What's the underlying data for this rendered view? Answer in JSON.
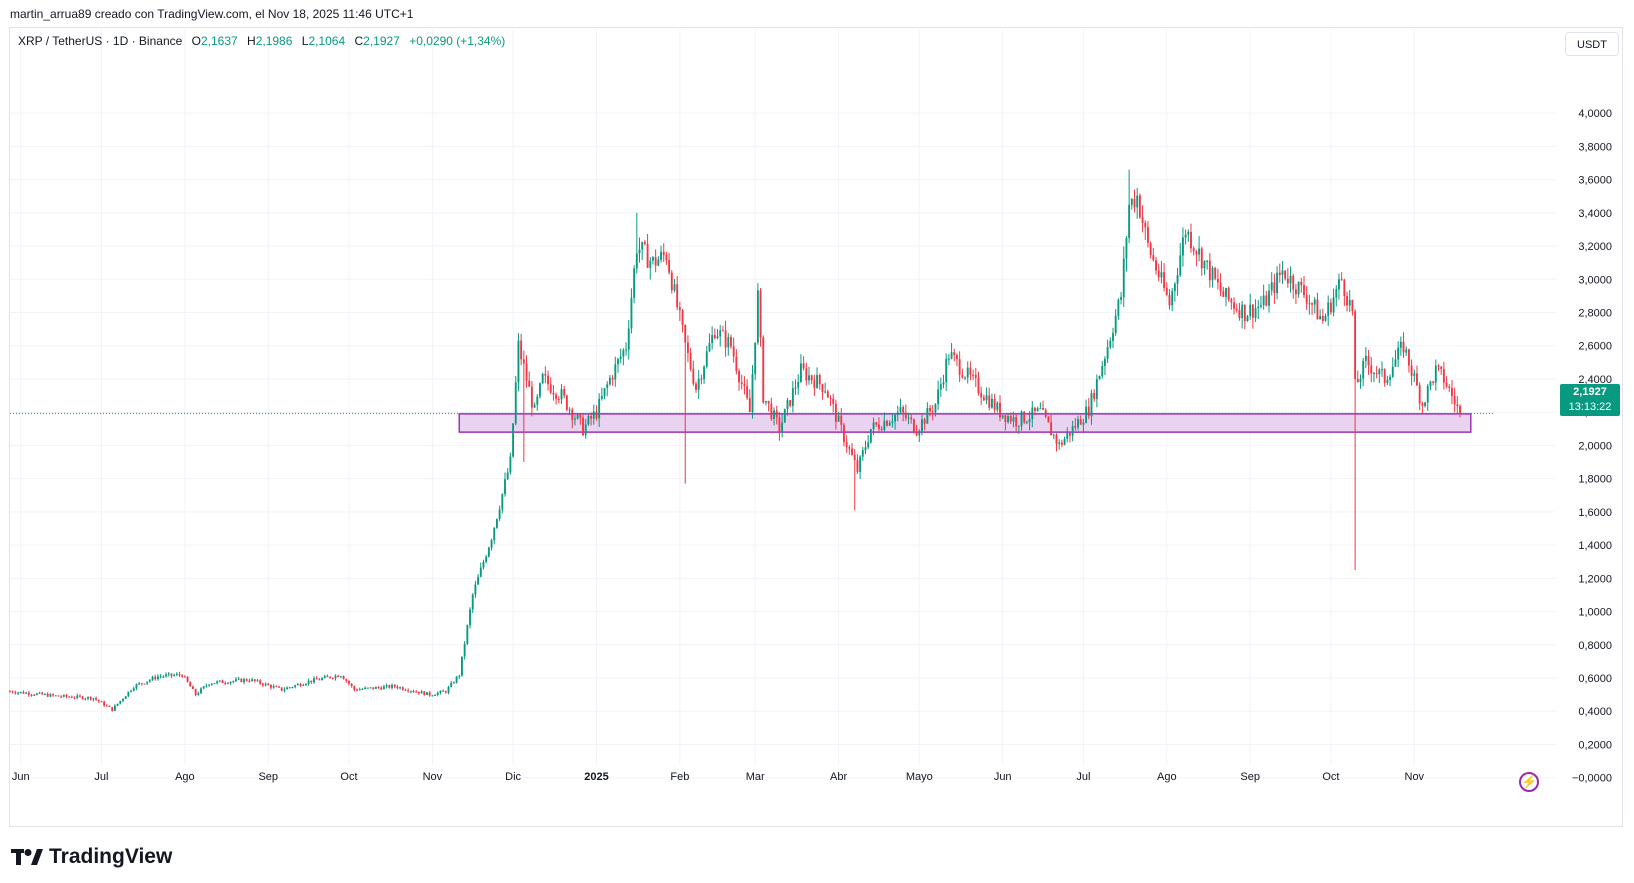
{
  "caption": "martin_arrua89 creado con TradingView.com, el Nov 18, 2025 11:46 UTC+1",
  "legend": {
    "symbol": "XRP / TetherUS · 1D · Binance",
    "o_label": "O",
    "o_value": "2,1637",
    "h_label": "H",
    "h_value": "2,1986",
    "l_label": "L",
    "l_value": "2,1064",
    "c_label": "C",
    "c_value": "2,1927",
    "change": "+0,0290 (+1,34%)"
  },
  "currency": "USDT",
  "price_tag": {
    "price": "2,1927",
    "countdown": "13:13:22"
  },
  "logo_text": "TradingView",
  "colors": {
    "up": "#089981",
    "down": "#f23645",
    "zone_fill": "#e8d1f0",
    "zone_stroke": "#9c27b0",
    "grid": "#f0f3fa"
  },
  "chart_data": {
    "type": "candlestick",
    "y_ticks": [
      "4,0000",
      "3,8000",
      "3,6000",
      "3,4000",
      "3,2000",
      "3,0000",
      "2,8000",
      "2,6000",
      "2,4000",
      "2,2000",
      "2,0000",
      "1,8000",
      "1,6000",
      "1,4000",
      "1,2000",
      "1,0000",
      "0,8000",
      "0,6000",
      "0,4000",
      "0,2000",
      "−0,0000"
    ],
    "y_tick_values": [
      4.0,
      3.8,
      3.6,
      3.4,
      3.2,
      3.0,
      2.8,
      2.6,
      2.4,
      2.2,
      2.0,
      1.8,
      1.6,
      1.4,
      1.2,
      1.0,
      0.8,
      0.6,
      0.4,
      0.2,
      0.0
    ],
    "ylim": [
      -0.05,
      4.35
    ],
    "x_ticks": [
      {
        "label": "Jun",
        "date": "2024-06-01"
      },
      {
        "label": "Jul",
        "date": "2024-07-01"
      },
      {
        "label": "Ago",
        "date": "2024-08-01"
      },
      {
        "label": "Sep",
        "date": "2024-09-01"
      },
      {
        "label": "Oct",
        "date": "2024-10-01"
      },
      {
        "label": "Nov",
        "date": "2024-11-01"
      },
      {
        "label": "Dic",
        "date": "2024-12-01"
      },
      {
        "label": "2025",
        "date": "2025-01-01",
        "bold": true
      },
      {
        "label": "Feb",
        "date": "2025-02-01"
      },
      {
        "label": "Mar",
        "date": "2025-03-01"
      },
      {
        "label": "Abr",
        "date": "2025-04-01"
      },
      {
        "label": "Mayo",
        "date": "2025-05-01"
      },
      {
        "label": "Jun",
        "date": "2025-06-01"
      },
      {
        "label": "Jul",
        "date": "2025-07-01"
      },
      {
        "label": "Ago",
        "date": "2025-08-01"
      },
      {
        "label": "Sep",
        "date": "2025-09-01"
      },
      {
        "label": "Oct",
        "date": "2025-10-01"
      },
      {
        "label": "Nov",
        "date": "2025-11-01"
      }
    ],
    "xlim": [
      "2024-05-28",
      "2025-12-01"
    ],
    "last_close": 2.1927,
    "zone": {
      "from": "2024-11-11",
      "to": "2025-11-22",
      "low": 2.08,
      "high": 2.19
    },
    "price_path": [
      [
        "2024-05-28",
        0.52
      ],
      [
        "2024-06-15",
        0.49
      ],
      [
        "2024-06-28",
        0.48
      ],
      [
        "2024-07-05",
        0.41
      ],
      [
        "2024-07-13",
        0.55
      ],
      [
        "2024-07-22",
        0.61
      ],
      [
        "2024-07-31",
        0.62
      ],
      [
        "2024-08-05",
        0.5
      ],
      [
        "2024-08-10",
        0.57
      ],
      [
        "2024-08-25",
        0.59
      ],
      [
        "2024-09-06",
        0.53
      ],
      [
        "2024-09-16",
        0.58
      ],
      [
        "2024-09-28",
        0.62
      ],
      [
        "2024-10-03",
        0.53
      ],
      [
        "2024-10-18",
        0.55
      ],
      [
        "2024-10-31",
        0.5
      ],
      [
        "2024-11-06",
        0.52
      ],
      [
        "2024-11-11",
        0.62
      ],
      [
        "2024-11-16",
        1.1
      ],
      [
        "2024-11-23",
        1.45
      ],
      [
        "2024-11-30",
        1.9
      ],
      [
        "2024-12-03",
        2.6
      ],
      [
        "2024-12-09",
        2.2
      ],
      [
        "2024-12-12",
        2.4
      ],
      [
        "2024-12-19",
        2.3
      ],
      [
        "2024-12-27",
        2.1
      ],
      [
        "2025-01-01",
        2.2
      ],
      [
        "2025-01-06",
        2.4
      ],
      [
        "2025-01-12",
        2.6
      ],
      [
        "2025-01-16",
        3.2
      ],
      [
        "2025-01-22",
        3.1
      ],
      [
        "2025-01-27",
        3.15
      ],
      [
        "2025-02-03",
        2.6
      ],
      [
        "2025-02-07",
        2.35
      ],
      [
        "2025-02-14",
        2.7
      ],
      [
        "2025-02-20",
        2.6
      ],
      [
        "2025-02-27",
        2.2
      ],
      [
        "2025-03-02",
        2.9
      ],
      [
        "2025-03-04",
        2.3
      ],
      [
        "2025-03-10",
        2.1
      ],
      [
        "2025-03-18",
        2.45
      ],
      [
        "2025-03-27",
        2.35
      ],
      [
        "2025-04-03",
        2.05
      ],
      [
        "2025-04-08",
        1.85
      ],
      [
        "2025-04-13",
        2.1
      ],
      [
        "2025-04-24",
        2.2
      ],
      [
        "2025-04-30",
        2.1
      ],
      [
        "2025-05-07",
        2.25
      ],
      [
        "2025-05-12",
        2.55
      ],
      [
        "2025-05-20",
        2.4
      ],
      [
        "2025-05-31",
        2.2
      ],
      [
        "2025-06-06",
        2.15
      ],
      [
        "2025-06-15",
        2.2
      ],
      [
        "2025-06-22",
        2.0
      ],
      [
        "2025-06-27",
        2.1
      ],
      [
        "2025-07-03",
        2.22
      ],
      [
        "2025-07-10",
        2.6
      ],
      [
        "2025-07-15",
        2.9
      ],
      [
        "2025-07-18",
        3.45
      ],
      [
        "2025-07-21",
        3.5
      ],
      [
        "2025-07-25",
        3.2
      ],
      [
        "2025-08-02",
        2.85
      ],
      [
        "2025-08-08",
        3.3
      ],
      [
        "2025-08-15",
        3.1
      ],
      [
        "2025-08-22",
        2.9
      ],
      [
        "2025-08-30",
        2.8
      ],
      [
        "2025-09-06",
        2.85
      ],
      [
        "2025-09-13",
        3.05
      ],
      [
        "2025-09-22",
        2.9
      ],
      [
        "2025-09-28",
        2.75
      ],
      [
        "2025-10-05",
        3.0
      ],
      [
        "2025-10-09",
        2.8
      ],
      [
        "2025-10-10",
        2.35
      ],
      [
        "2025-10-14",
        2.5
      ],
      [
        "2025-10-21",
        2.4
      ],
      [
        "2025-10-28",
        2.6
      ],
      [
        "2025-11-04",
        2.25
      ],
      [
        "2025-11-09",
        2.45
      ],
      [
        "2025-11-12",
        2.4
      ],
      [
        "2025-11-18",
        2.1927
      ]
    ],
    "notable_wicks": [
      {
        "date": "2024-12-05",
        "low": 1.9
      },
      {
        "date": "2025-02-03",
        "low": 1.77
      },
      {
        "date": "2025-04-07",
        "low": 1.61
      },
      {
        "date": "2025-10-10",
        "low": 1.25
      },
      {
        "date": "2025-07-18",
        "high": 3.66
      },
      {
        "date": "2025-01-16",
        "high": 3.4
      }
    ]
  }
}
